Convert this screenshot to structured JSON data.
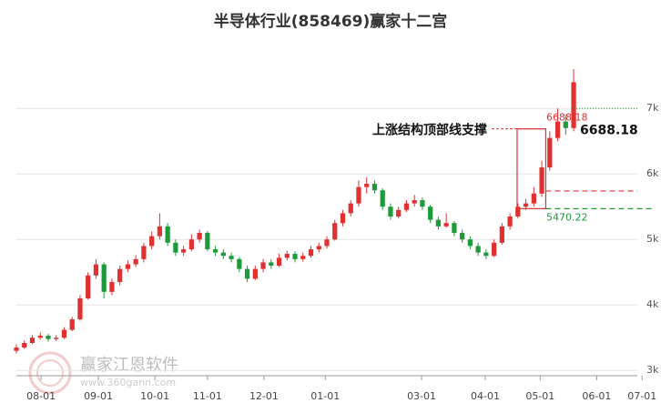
{
  "chart_data": {
    "type": "candlestick",
    "title": "半导体行业(858469)赢家十二宫",
    "up_color": "#e03030",
    "down_color": "#1f9a3a",
    "xlim": [
      0,
      78
    ],
    "xticks": [
      {
        "value": 3.1,
        "label": "08-01"
      },
      {
        "value": 10.3,
        "label": "09-01"
      },
      {
        "value": 17.4,
        "label": "10-01"
      },
      {
        "value": 24,
        "label": "11-01"
      },
      {
        "value": 31.1,
        "label": "12-01"
      },
      {
        "value": 38.8,
        "label": "01-01"
      },
      {
        "value": 50.9,
        "label": "03-01"
      },
      {
        "value": 58.9,
        "label": "04-01"
      },
      {
        "value": 65.8,
        "label": "05-01"
      },
      {
        "value": 72.9,
        "label": "06-01"
      },
      {
        "value": 78.6,
        "label": "07-01"
      }
    ],
    "ylim": [
      2920,
      8100
    ],
    "yticks": [
      {
        "value": 3000,
        "label": "3k"
      },
      {
        "value": 4000,
        "label": "4k"
      },
      {
        "value": 5000,
        "label": "5k"
      },
      {
        "value": 6000,
        "label": "6k"
      },
      {
        "value": 7000,
        "label": "7k"
      }
    ],
    "grid": true,
    "candles": [
      [
        3300,
        3400,
        3260,
        3350
      ],
      [
        3350,
        3460,
        3330,
        3420
      ],
      [
        3420,
        3540,
        3400,
        3500
      ],
      [
        3500,
        3580,
        3470,
        3530
      ],
      [
        3530,
        3560,
        3440,
        3480
      ],
      [
        3480,
        3540,
        3450,
        3500
      ],
      [
        3500,
        3660,
        3480,
        3620
      ],
      [
        3620,
        3820,
        3600,
        3780
      ],
      [
        3780,
        4150,
        3760,
        4100
      ],
      [
        4100,
        4500,
        4080,
        4450
      ],
      [
        4450,
        4700,
        4400,
        4620
      ],
      [
        4620,
        4650,
        4100,
        4200
      ],
      [
        4200,
        4400,
        4150,
        4350
      ],
      [
        4350,
        4600,
        4300,
        4550
      ],
      [
        4550,
        4680,
        4500,
        4620
      ],
      [
        4620,
        4760,
        4580,
        4700
      ],
      [
        4700,
        4950,
        4650,
        4900
      ],
      [
        4900,
        5120,
        4850,
        5050
      ],
      [
        5050,
        5400,
        5000,
        5200
      ],
      [
        5200,
        5250,
        4900,
        4950
      ],
      [
        4950,
        5000,
        4750,
        4800
      ],
      [
        4800,
        4900,
        4750,
        4850
      ],
      [
        4850,
        5080,
        4820,
        5000
      ],
      [
        5000,
        5150,
        4950,
        5100
      ],
      [
        5100,
        5130,
        4820,
        4850
      ],
      [
        4850,
        4900,
        4750,
        4800
      ],
      [
        4800,
        4850,
        4700,
        4750
      ],
      [
        4750,
        4800,
        4650,
        4700
      ],
      [
        4700,
        4730,
        4500,
        4550
      ],
      [
        4550,
        4600,
        4350,
        4400
      ],
      [
        4400,
        4600,
        4380,
        4550
      ],
      [
        4550,
        4700,
        4500,
        4650
      ],
      [
        4650,
        4700,
        4550,
        4600
      ],
      [
        4600,
        4780,
        4580,
        4720
      ],
      [
        4720,
        4830,
        4680,
        4780
      ],
      [
        4780,
        4820,
        4650,
        4700
      ],
      [
        4700,
        4800,
        4660,
        4750
      ],
      [
        4750,
        4900,
        4720,
        4850
      ],
      [
        4850,
        4950,
        4800,
        4900
      ],
      [
        4900,
        5050,
        4860,
        5000
      ],
      [
        5000,
        5300,
        4980,
        5250
      ],
      [
        5250,
        5450,
        5200,
        5400
      ],
      [
        5400,
        5600,
        5350,
        5550
      ],
      [
        5550,
        5900,
        5500,
        5800
      ],
      [
        5800,
        5950,
        5700,
        5850
      ],
      [
        5850,
        5900,
        5700,
        5750
      ],
      [
        5750,
        5780,
        5450,
        5500
      ],
      [
        5500,
        5550,
        5300,
        5350
      ],
      [
        5350,
        5500,
        5320,
        5450
      ],
      [
        5450,
        5600,
        5420,
        5550
      ],
      [
        5550,
        5680,
        5500,
        5600
      ],
      [
        5600,
        5640,
        5450,
        5500
      ],
      [
        5500,
        5530,
        5250,
        5300
      ],
      [
        5300,
        5350,
        5150,
        5200
      ],
      [
        5200,
        5400,
        5180,
        5250
      ],
      [
        5250,
        5280,
        5050,
        5100
      ],
      [
        5100,
        5150,
        4950,
        5000
      ],
      [
        5000,
        5050,
        4850,
        4900
      ],
      [
        4900,
        4950,
        4750,
        4800
      ],
      [
        4800,
        4850,
        4700,
        4750
      ],
      [
        4750,
        5000,
        4730,
        4950
      ],
      [
        4950,
        5250,
        4920,
        5200
      ],
      [
        5200,
        5400,
        5150,
        5350
      ],
      [
        5350,
        5550,
        5320,
        5500
      ],
      [
        5500,
        5620,
        5450,
        5550
      ],
      [
        5550,
        5800,
        5500,
        5700
      ],
      [
        5700,
        6200,
        5650,
        6100
      ],
      [
        6100,
        6650,
        6050,
        6550
      ],
      [
        6550,
        7000,
        6500,
        6800
      ],
      [
        6800,
        6900,
        6600,
        6700
      ],
      [
        6700,
        7600,
        6650,
        7400
      ]
    ],
    "support_label": "上涨结构顶部线支撑",
    "support_value": 6688.18,
    "box": {
      "x": [
        62.9,
        66.5
      ],
      "y": [
        5470.22,
        6688.18
      ],
      "color": "#e03030"
    },
    "levels": [
      {
        "value": 5740,
        "color": "#e03030",
        "x": [
          66.5,
          78
        ]
      },
      {
        "value": 5470.22,
        "color": "#1f9a3a",
        "x": [
          66.5,
          80
        ]
      },
      {
        "value": 7000,
        "color": "#1f9a3a",
        "x": [
          70,
          78
        ]
      }
    ],
    "watermark": "赢家江恩软件",
    "watermark_url": "www.360gann.com"
  }
}
